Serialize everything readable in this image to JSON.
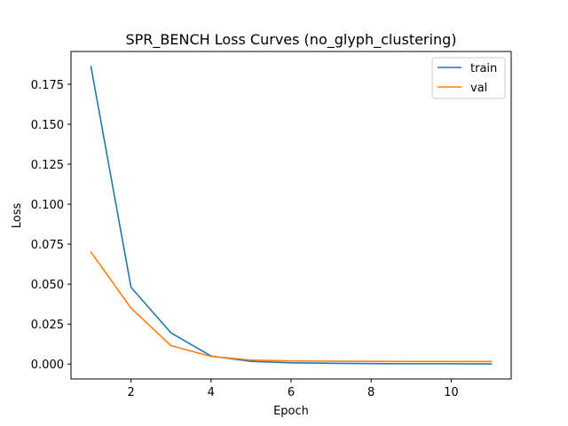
{
  "chart_data": {
    "type": "line",
    "title": "SPR_BENCH Loss Curves (no_glyph_clustering)",
    "xlabel": "Epoch",
    "ylabel": "Loss",
    "xlim": [
      0.5,
      11.5
    ],
    "ylim": [
      -0.0093,
      0.1955
    ],
    "x_ticks": [
      2,
      4,
      6,
      8,
      10
    ],
    "y_ticks": [
      0.0,
      0.025,
      0.05,
      0.075,
      0.1,
      0.125,
      0.15,
      0.175
    ],
    "y_tick_labels": [
      "0.000",
      "0.025",
      "0.050",
      "0.075",
      "0.100",
      "0.125",
      "0.150",
      "0.175"
    ],
    "grid": false,
    "legend_position": "top-right",
    "x": [
      1,
      2,
      3,
      4,
      5,
      6,
      7,
      8,
      9,
      10,
      11
    ],
    "series": [
      {
        "name": "train",
        "color": "#1f77b4",
        "values": [
          0.186,
          0.048,
          0.0195,
          0.005,
          0.0017,
          0.0008,
          0.0005,
          0.0003,
          0.0002,
          0.0002,
          0.0001
        ]
      },
      {
        "name": "val",
        "color": "#ff7f0e",
        "values": [
          0.07,
          0.035,
          0.0115,
          0.0048,
          0.0025,
          0.002,
          0.0018,
          0.0017,
          0.0016,
          0.0016,
          0.0016
        ]
      }
    ]
  }
}
